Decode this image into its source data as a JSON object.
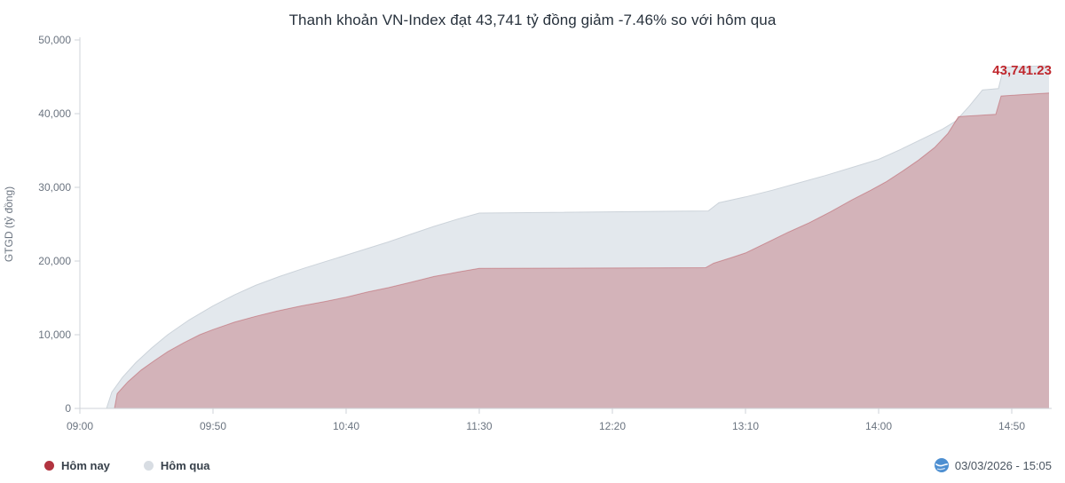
{
  "chart_data": {
    "type": "area",
    "title": "Thanh khoản VN-Index đạt 43,741 tỷ đồng giảm -7.46% so với hôm qua",
    "xlabel": "",
    "ylabel": "GTGD (tỷ đồng)",
    "x_domain": [
      "09:00",
      "15:05"
    ],
    "ylim": [
      0,
      50000
    ],
    "y_ticks": [
      0,
      10000,
      20000,
      30000,
      40000,
      50000
    ],
    "x_ticks": [
      "09:00",
      "09:50",
      "10:40",
      "11:30",
      "12:20",
      "13:10",
      "14:00",
      "14:50"
    ],
    "grid": false,
    "legend_position": "bottom-left",
    "annotation": {
      "text": "43,741.23",
      "value": 43741.23,
      "color": "#c0272d"
    },
    "series": [
      {
        "name": "Hôm qua",
        "fill": "#e3e8ed",
        "stroke": "#ccd3da",
        "points": [
          [
            "09:10",
            0
          ],
          [
            "09:12",
            2200
          ],
          [
            "09:16",
            4200
          ],
          [
            "09:21",
            6200
          ],
          [
            "09:27",
            8200
          ],
          [
            "09:33",
            10000
          ],
          [
            "09:41",
            12000
          ],
          [
            "09:50",
            13900
          ],
          [
            "09:58",
            15400
          ],
          [
            "10:06",
            16700
          ],
          [
            "10:15",
            17900
          ],
          [
            "10:24",
            19000
          ],
          [
            "10:32",
            19900
          ],
          [
            "10:40",
            20800
          ],
          [
            "10:48",
            21700
          ],
          [
            "10:56",
            22600
          ],
          [
            "11:04",
            23600
          ],
          [
            "11:13",
            24700
          ],
          [
            "11:22",
            25700
          ],
          [
            "11:30",
            26500
          ],
          [
            "12:56",
            26800
          ],
          [
            "13:00",
            27900
          ],
          [
            "13:10",
            28700
          ],
          [
            "13:20",
            29600
          ],
          [
            "13:30",
            30600
          ],
          [
            "13:40",
            31600
          ],
          [
            "13:50",
            32700
          ],
          [
            "14:00",
            33800
          ],
          [
            "14:08",
            35100
          ],
          [
            "14:16",
            36500
          ],
          [
            "14:24",
            37900
          ],
          [
            "14:29",
            39000
          ],
          [
            "14:34",
            41000
          ],
          [
            "14:39",
            43200
          ],
          [
            "14:45",
            43400
          ],
          [
            "14:47",
            46300
          ],
          [
            "15:04",
            46500
          ]
        ]
      },
      {
        "name": "Hôm nay",
        "fill": "rgba(177,56,66,0.30)",
        "stroke": "rgba(177,56,66,0.40)",
        "points": [
          [
            "09:13",
            0
          ],
          [
            "09:14",
            2000
          ],
          [
            "09:18",
            3600
          ],
          [
            "09:23",
            5200
          ],
          [
            "09:28",
            6500
          ],
          [
            "09:33",
            7700
          ],
          [
            "09:39",
            8900
          ],
          [
            "09:45",
            10000
          ],
          [
            "09:50",
            10700
          ],
          [
            "09:58",
            11700
          ],
          [
            "10:06",
            12500
          ],
          [
            "10:14",
            13200
          ],
          [
            "10:23",
            13900
          ],
          [
            "10:32",
            14500
          ],
          [
            "10:40",
            15100
          ],
          [
            "10:48",
            15800
          ],
          [
            "10:56",
            16400
          ],
          [
            "11:04",
            17100
          ],
          [
            "11:13",
            17900
          ],
          [
            "11:22",
            18500
          ],
          [
            "11:30",
            19000
          ],
          [
            "12:55",
            19100
          ],
          [
            "12:58",
            19700
          ],
          [
            "13:05",
            20500
          ],
          [
            "13:10",
            21100
          ],
          [
            "13:18",
            22500
          ],
          [
            "13:26",
            23900
          ],
          [
            "13:34",
            25200
          ],
          [
            "13:42",
            26700
          ],
          [
            "13:50",
            28300
          ],
          [
            "13:57",
            29600
          ],
          [
            "14:03",
            30800
          ],
          [
            "14:09",
            32200
          ],
          [
            "14:15",
            33700
          ],
          [
            "14:21",
            35400
          ],
          [
            "14:26",
            37300
          ],
          [
            "14:30",
            39600
          ],
          [
            "14:44",
            39900
          ],
          [
            "14:46",
            42400
          ],
          [
            "15:04",
            42800
          ]
        ]
      }
    ]
  },
  "legend": {
    "items": [
      {
        "label": "Hôm nay",
        "color": "#b23440"
      },
      {
        "label": "Hôm qua",
        "color": "#d8dde3"
      }
    ]
  },
  "footer": {
    "timestamp": "03/03/2026 - 15:05"
  }
}
